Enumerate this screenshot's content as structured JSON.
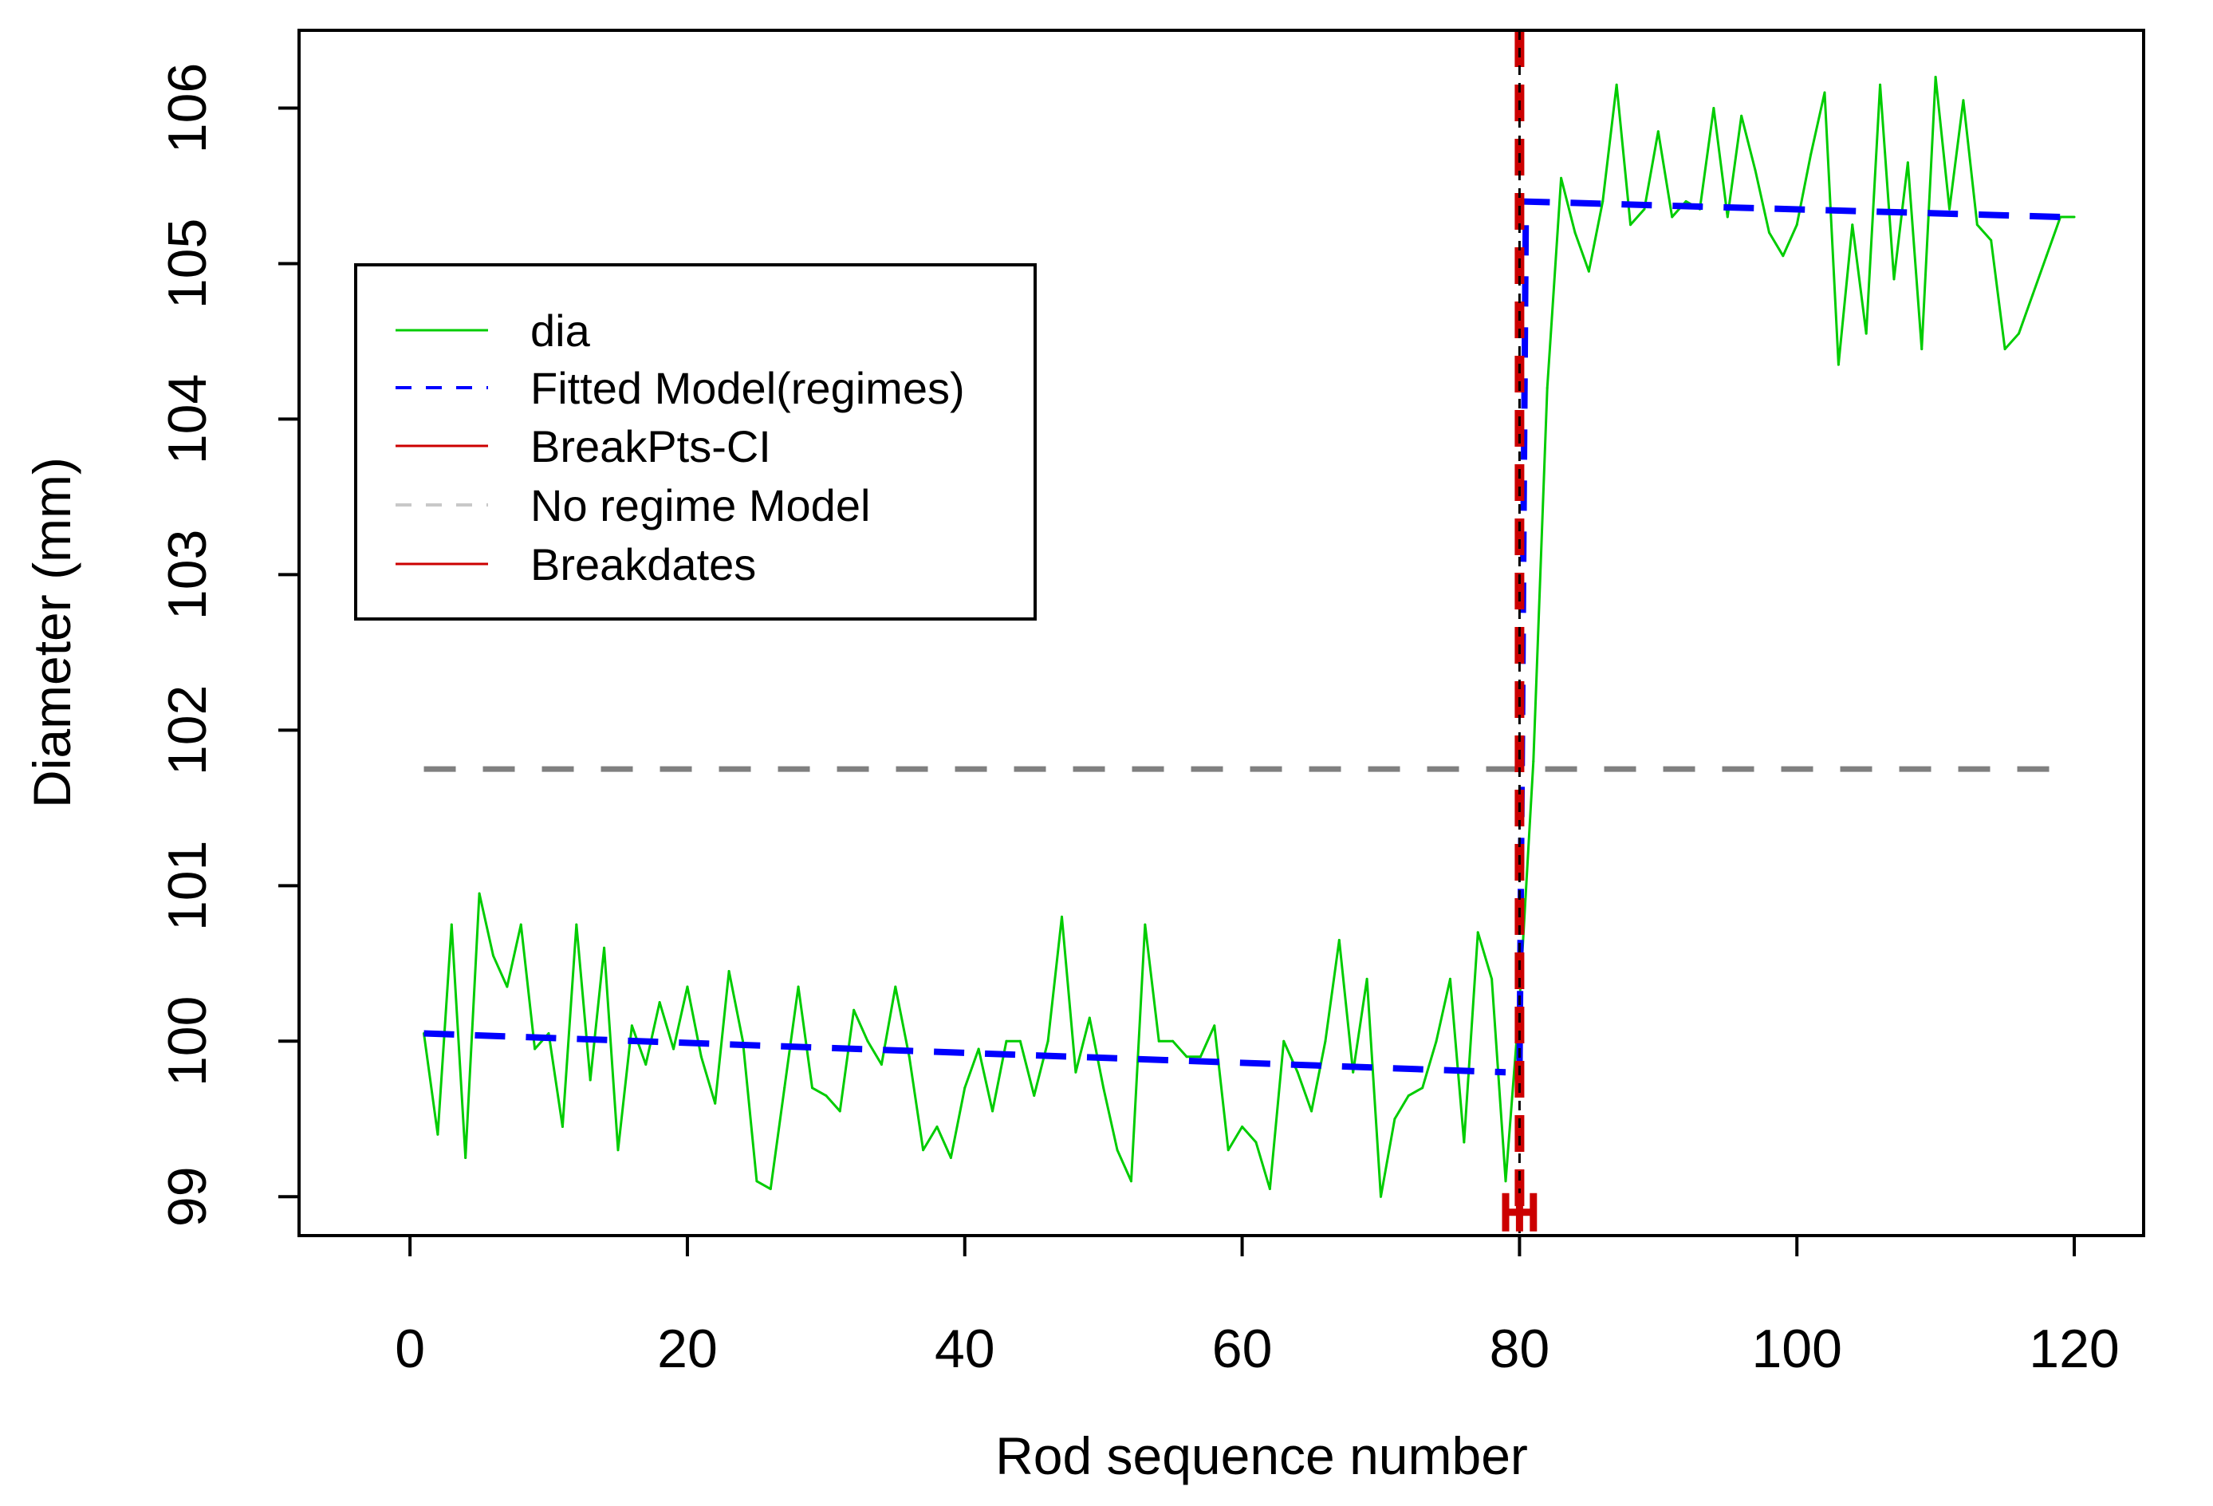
{
  "chart_data": {
    "type": "line",
    "title": "",
    "xlabel": "Rod sequence number",
    "ylabel": "Diameter (mm)",
    "xlim": [
      -8,
      125
    ],
    "ylim": [
      98.75,
      106.5
    ],
    "xticks": [
      0,
      20,
      40,
      60,
      80,
      100,
      120
    ],
    "yticks": [
      99,
      100,
      101,
      102,
      103,
      104,
      105,
      106
    ],
    "legend_position": "left-middle",
    "colors": {
      "dia": "#00cc00",
      "fitted": "#0000ff",
      "ci": "#cc0000",
      "noregime": "#808080",
      "breakdates": "#cc0000",
      "breakline": "#000000"
    },
    "legend": [
      {
        "key": "dia",
        "label": "dia"
      },
      {
        "key": "fitted",
        "label": "Fitted Model(regimes)"
      },
      {
        "key": "ci",
        "label": "BreakPts-CI"
      },
      {
        "key": "noregime",
        "label": "No regime Model"
      },
      {
        "key": "breakdates",
        "label": "Breakdates"
      }
    ],
    "series": [
      {
        "name": "dia",
        "x": [
          1,
          2,
          3,
          4,
          5,
          6,
          7,
          8,
          9,
          10,
          11,
          12,
          13,
          14,
          15,
          16,
          17,
          18,
          19,
          20,
          21,
          22,
          23,
          24,
          25,
          26,
          27,
          28,
          29,
          30,
          31,
          32,
          33,
          34,
          35,
          36,
          37,
          38,
          39,
          40,
          41,
          42,
          43,
          44,
          45,
          46,
          47,
          48,
          49,
          50,
          51,
          52,
          53,
          54,
          55,
          56,
          57,
          58,
          59,
          60,
          61,
          62,
          63,
          64,
          65,
          66,
          67,
          68,
          69,
          70,
          71,
          72,
          73,
          74,
          75,
          76,
          77,
          78,
          79,
          80,
          81,
          82,
          83,
          84,
          85,
          86,
          87,
          88,
          89,
          90,
          91,
          92,
          93,
          94,
          95,
          96,
          97,
          98,
          99,
          100,
          101,
          102,
          103,
          104,
          105,
          106,
          107,
          108,
          109,
          110,
          111,
          112,
          113,
          114,
          115,
          116,
          117,
          118,
          119,
          120
        ],
        "values": [
          100.05,
          99.4,
          100.75,
          99.25,
          100.95,
          100.55,
          100.35,
          100.75,
          99.95,
          100.05,
          99.45,
          100.75,
          99.75,
          100.6,
          99.3,
          100.1,
          99.85,
          100.25,
          99.95,
          100.35,
          99.9,
          99.6,
          100.45,
          100.0,
          99.1,
          99.05,
          99.7,
          100.35,
          99.7,
          99.65,
          99.55,
          100.2,
          100.0,
          99.85,
          100.35,
          99.9,
          99.3,
          99.45,
          99.25,
          99.7,
          99.95,
          99.55,
          100.0,
          100.0,
          99.65,
          100.0,
          100.8,
          99.8,
          100.15,
          99.7,
          99.3,
          99.1,
          100.75,
          100.0,
          100.0,
          99.9,
          99.9,
          100.1,
          99.3,
          99.45,
          99.35,
          99.05,
          100.0,
          99.8,
          99.55,
          100.0,
          100.65,
          99.8,
          100.4,
          99.0,
          99.5,
          99.65,
          99.7,
          100.0,
          100.4,
          99.35,
          100.7,
          100.4,
          99.1,
          100.25,
          101.8,
          104.2,
          105.55,
          105.2,
          104.95,
          105.4,
          106.15,
          105.25,
          105.35,
          105.85,
          105.3,
          105.4,
          105.35,
          106.0,
          105.3,
          105.95,
          105.6,
          105.2,
          105.05,
          105.25,
          105.7,
          106.1,
          104.35,
          105.25,
          104.55,
          106.15,
          104.9,
          105.65,
          104.45,
          106.2,
          105.35,
          106.05,
          105.25,
          105.15,
          104.45,
          104.55,
          104.8,
          105.05,
          105.3,
          105.3
        ]
      },
      {
        "name": "Fitted Model(regimes)",
        "segments": [
          {
            "x": [
              1,
              79
            ],
            "values": [
              100.05,
              99.8
            ]
          },
          {
            "x": [
              80,
              80
            ],
            "values": [
              99.8,
              105.4
            ]
          },
          {
            "x": [
              80,
              119
            ],
            "values": [
              105.4,
              105.3
            ]
          }
        ]
      },
      {
        "name": "No regime Model",
        "y": 101.75,
        "x": [
          1,
          120
        ]
      },
      {
        "name": "Breakdates",
        "x": 80
      },
      {
        "name": "BreakPts-CI",
        "x_low": 79,
        "x_high": 81,
        "at_y": 98.9
      }
    ]
  }
}
